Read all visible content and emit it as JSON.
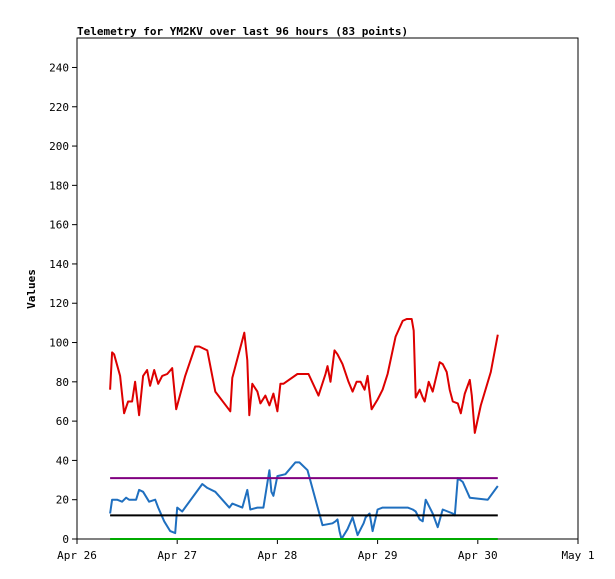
{
  "chart_data": {
    "type": "line",
    "title": "Telemetry for YM2KV over last 96 hours (83 points)",
    "xlabel": "",
    "ylabel": "Values",
    "xlim": [
      0,
      5
    ],
    "ylim": [
      0,
      255
    ],
    "grid": false,
    "legend": "none",
    "x_tick_labels": [
      "Apr 26",
      "Apr 27",
      "Apr 28",
      "Apr 29",
      "Apr 30",
      "May 1"
    ],
    "x_tick_values": [
      0,
      1,
      2,
      3,
      4,
      5
    ],
    "y_ticks": [
      0,
      20,
      40,
      60,
      80,
      100,
      120,
      140,
      160,
      180,
      200,
      220,
      240
    ],
    "x_unit": "days after Apr 26 00:00",
    "series": [
      {
        "color": "#dd0000",
        "x": [
          0.33,
          0.35,
          0.37,
          0.43,
          0.47,
          0.51,
          0.55,
          0.58,
          0.62,
          0.66,
          0.7,
          0.73,
          0.77,
          0.81,
          0.85,
          0.9,
          0.95,
          0.99,
          1.08,
          1.18,
          1.22,
          1.3,
          1.38,
          1.53,
          1.55,
          1.67,
          1.7,
          1.72,
          1.75,
          1.8,
          1.83,
          1.88,
          1.92,
          1.96,
          2.0,
          2.03,
          2.06,
          2.2,
          2.25,
          2.31,
          2.41,
          2.48,
          2.5,
          2.53,
          2.57,
          2.6,
          2.65,
          2.71,
          2.75,
          2.79,
          2.83,
          2.85,
          2.87,
          2.9,
          2.94,
          3.0,
          3.05,
          3.1,
          3.18,
          3.25,
          3.29,
          3.34,
          3.36,
          3.38,
          3.42,
          3.45,
          3.47,
          3.51,
          3.55,
          3.62,
          3.65,
          3.69,
          3.72,
          3.75,
          3.8,
          3.83,
          3.87,
          3.92,
          3.94,
          3.97,
          4.03,
          4.13,
          4.2
        ],
        "y": [
          76,
          95,
          94,
          83,
          64,
          70,
          70,
          80,
          63,
          83,
          86,
          78,
          86,
          79,
          83,
          84,
          87,
          66,
          83,
          98,
          98,
          96,
          75,
          65,
          82,
          105,
          91,
          63,
          79,
          75,
          69,
          73,
          68,
          74,
          65,
          79,
          79,
          84,
          84,
          84,
          73,
          84,
          88,
          80,
          96,
          94,
          89,
          80,
          75,
          80,
          80,
          78,
          76,
          83,
          66,
          71,
          76,
          84,
          103,
          111,
          112,
          112,
          106,
          72,
          76,
          72,
          70,
          80,
          75,
          90,
          89,
          85,
          76,
          70,
          69,
          64,
          74,
          81,
          73,
          54,
          68,
          85,
          104
        ]
      },
      {
        "color": "#1f6fbf",
        "x": [
          0.33,
          0.35,
          0.4,
          0.45,
          0.49,
          0.52,
          0.56,
          0.59,
          0.62,
          0.66,
          0.72,
          0.78,
          0.81,
          0.87,
          0.93,
          0.98,
          1.0,
          1.05,
          1.25,
          1.3,
          1.38,
          1.52,
          1.55,
          1.65,
          1.7,
          1.73,
          1.8,
          1.86,
          1.92,
          1.94,
          1.96,
          2.0,
          2.08,
          2.18,
          2.22,
          2.3,
          2.45,
          2.55,
          2.58,
          2.6,
          2.62,
          2.64,
          2.7,
          2.75,
          2.8,
          2.84,
          2.86,
          2.88,
          2.92,
          2.95,
          3.0,
          3.05,
          3.1,
          3.3,
          3.35,
          3.38,
          3.42,
          3.45,
          3.48,
          3.5,
          3.55,
          3.6,
          3.65,
          3.7,
          3.75,
          3.77,
          3.8,
          3.85,
          3.92,
          4.1,
          4.2
        ],
        "y": [
          13,
          20,
          20,
          19,
          21,
          20,
          20,
          20,
          25,
          24,
          19,
          20,
          16,
          9,
          4,
          3,
          16,
          14,
          28,
          26,
          24,
          16,
          18,
          16,
          25,
          15,
          16,
          16,
          35,
          24,
          22,
          32,
          33,
          39,
          39,
          35,
          7,
          8,
          9,
          10,
          4,
          0,
          5,
          11,
          2,
          6,
          8,
          11,
          13,
          4,
          15,
          16,
          16,
          16,
          15,
          14,
          10,
          9,
          20,
          18,
          13,
          6,
          15,
          14,
          13,
          12,
          31,
          29,
          21,
          20,
          27
        ]
      },
      {
        "color": "#000000",
        "x": [
          0.33,
          4.2
        ],
        "y": [
          12,
          12
        ]
      },
      {
        "color": "#800080",
        "x": [
          0.33,
          4.2
        ],
        "y": [
          31,
          31
        ]
      },
      {
        "color": "#00aa00",
        "x": [
          0.33,
          4.2
        ],
        "y": [
          0,
          0
        ]
      }
    ]
  }
}
